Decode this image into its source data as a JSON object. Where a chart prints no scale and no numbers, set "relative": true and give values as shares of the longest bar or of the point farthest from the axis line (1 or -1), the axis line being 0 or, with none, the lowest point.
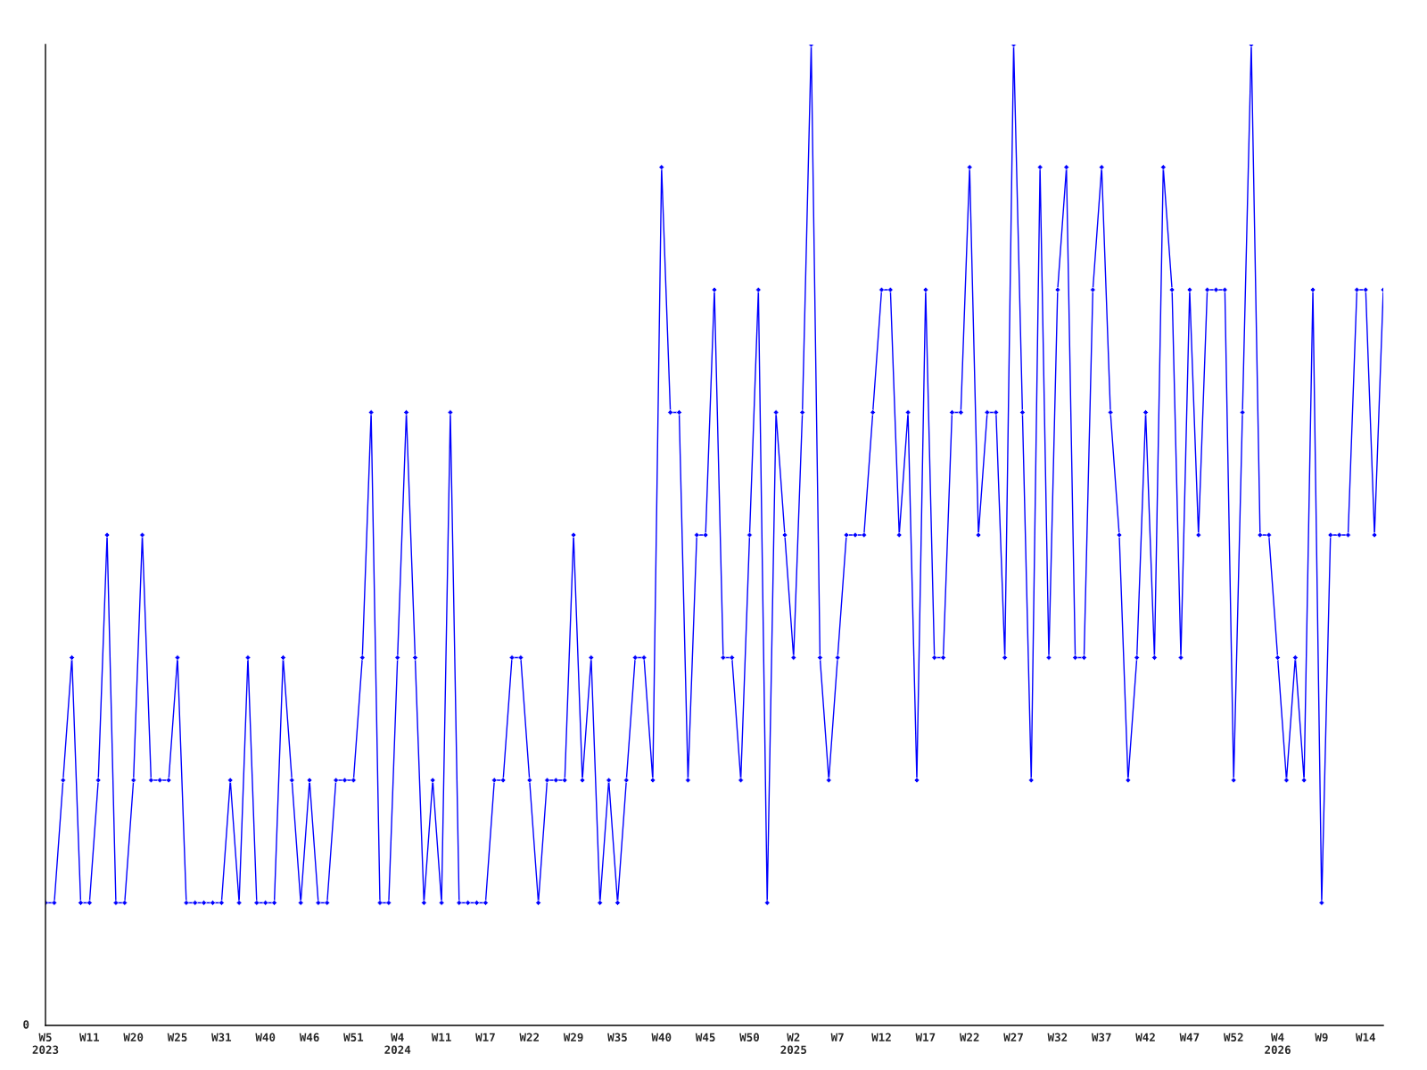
{
  "chart_data": {
    "type": "line",
    "relative": true,
    "marker": "diamond",
    "line_style": "solid",
    "grid": false,
    "annotations": [
      "0"
    ],
    "categories": [
      "W5\n2023",
      null,
      null,
      null,
      null,
      "W11",
      null,
      null,
      null,
      null,
      "W20",
      null,
      null,
      null,
      null,
      "W25",
      null,
      null,
      null,
      null,
      "W31",
      null,
      null,
      null,
      null,
      "W40",
      null,
      null,
      null,
      null,
      "W46",
      null,
      null,
      null,
      null,
      "W51",
      null,
      null,
      null,
      null,
      "W4\n2024",
      null,
      null,
      null,
      null,
      "W11",
      null,
      null,
      null,
      null,
      "W17",
      null,
      null,
      null,
      null,
      "W22",
      null,
      null,
      null,
      null,
      "W29",
      null,
      null,
      null,
      null,
      "W35",
      null,
      null,
      null,
      null,
      "W40",
      null,
      null,
      null,
      null,
      "W45",
      null,
      null,
      null,
      null,
      "W50",
      null,
      null,
      null,
      null,
      "W2\n2025",
      null,
      null,
      null,
      null,
      "W7",
      null,
      null,
      null,
      null,
      "W12",
      null,
      null,
      null,
      null,
      "W17",
      null,
      null,
      null,
      null,
      "W22",
      null,
      null,
      null,
      null,
      "W27",
      null,
      null,
      null,
      null,
      "W32",
      null,
      null,
      null,
      null,
      "W37",
      null,
      null,
      null,
      null,
      "W42",
      null,
      null,
      null,
      null,
      "W47",
      null,
      null,
      null,
      null,
      "W52",
      null,
      null,
      null,
      null,
      "W4\n2026",
      null,
      null,
      null,
      null,
      "W9",
      null,
      null,
      null,
      null,
      "W14",
      null,
      null
    ],
    "series": [
      {
        "color": "#0000ff",
        "values": [
          0.125,
          0.125,
          0.25,
          0.375,
          0.125,
          0.125,
          0.25,
          0.5,
          0.125,
          0.125,
          0.25,
          0.5,
          0.25,
          0.25,
          0.25,
          0.375,
          0.125,
          0.125,
          0.125,
          0.125,
          0.125,
          0.25,
          0.125,
          0.375,
          0.125,
          0.125,
          0.125,
          0.375,
          0.25,
          0.125,
          0.25,
          0.125,
          0.125,
          0.25,
          0.25,
          0.25,
          0.375,
          0.625,
          0.125,
          0.125,
          0.375,
          0.625,
          0.375,
          0.125,
          0.25,
          0.125,
          0.625,
          0.125,
          0.125,
          0.125,
          0.125,
          0.25,
          0.25,
          0.375,
          0.375,
          0.25,
          0.125,
          0.25,
          0.25,
          0.25,
          0.5,
          0.25,
          0.375,
          0.125,
          0.25,
          0.125,
          0.25,
          0.375,
          0.375,
          0.25,
          0.875,
          0.625,
          0.625,
          0.25,
          0.5,
          0.5,
          0.75,
          0.375,
          0.375,
          0.25,
          0.5,
          0.75,
          0.125,
          0.625,
          0.5,
          0.375,
          0.625,
          1,
          0.375,
          0.25,
          0.375,
          0.5,
          0.5,
          0.5,
          0.625,
          0.75,
          0.75,
          0.5,
          0.625,
          0.25,
          0.75,
          0.375,
          0.375,
          0.625,
          0.625,
          0.875,
          0.5,
          0.625,
          0.625,
          0.375,
          1,
          0.625,
          0.25,
          0.875,
          0.375,
          0.75,
          0.875,
          0.375,
          0.375,
          0.75,
          0.875,
          0.625,
          0.5,
          0.25,
          0.375,
          0.625,
          0.375,
          0.875,
          0.75,
          0.375,
          0.75,
          0.5,
          0.75,
          0.75,
          0.75,
          0.25,
          0.625,
          1,
          0.5,
          0.5,
          0.375,
          0.25,
          0.375,
          0.25,
          0.75,
          0.125,
          0.5,
          0.5,
          0.5,
          0.75,
          0.75,
          0.5,
          0.75
        ]
      }
    ]
  }
}
